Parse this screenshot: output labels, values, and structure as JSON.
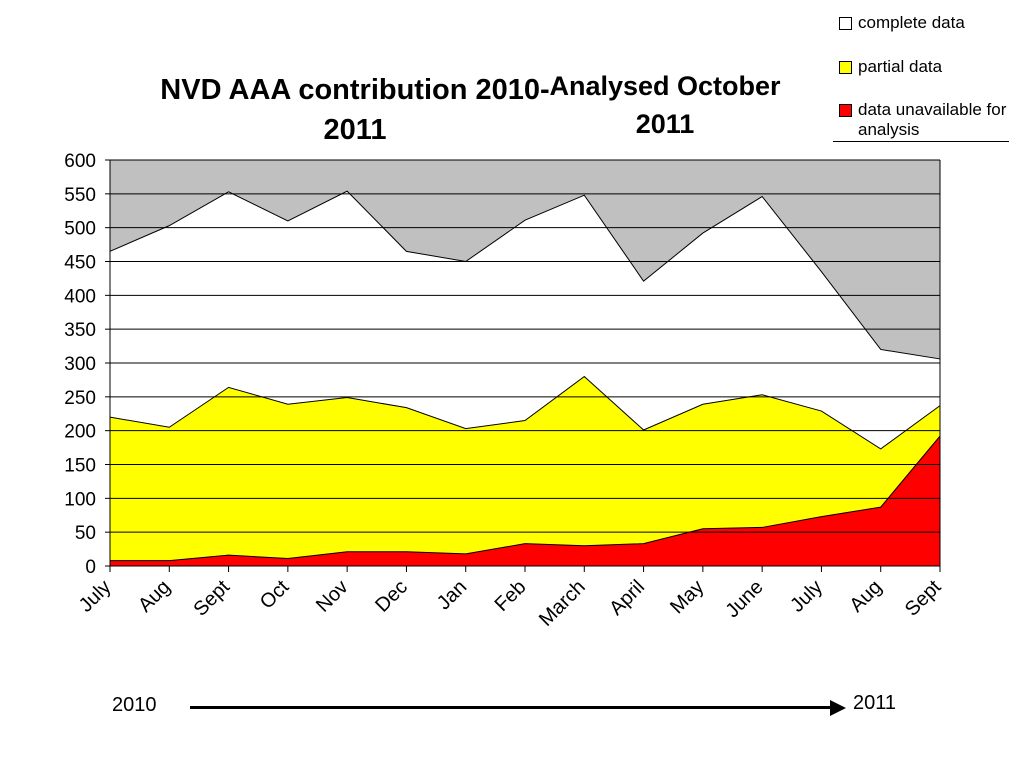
{
  "chart_data": {
    "type": "area",
    "title": "NVD AAA contribution 2010-2011",
    "subtitle": "Analysed October 2011",
    "categories": [
      "July",
      "Aug",
      "Sept",
      "Oct",
      "Nov",
      "Dec",
      "Jan",
      "Feb",
      "March",
      "April",
      "May",
      "June",
      "July",
      "Aug",
      "Sept"
    ],
    "stacked": true,
    "series": [
      {
        "name": "data unavailable for analysis",
        "color": "#ff0000",
        "values": [
          8,
          8,
          16,
          11,
          21,
          21,
          18,
          33,
          30,
          33,
          55,
          57,
          73,
          87,
          192
        ]
      },
      {
        "name": "partial data",
        "color": "#ffff00",
        "values": [
          212,
          197,
          248,
          228,
          228,
          213,
          185,
          182,
          250,
          168,
          184,
          196,
          156,
          86,
          45
        ]
      },
      {
        "name": "complete data",
        "color": "#ffffff",
        "values": [
          245,
          298,
          289,
          271,
          305,
          231,
          247,
          296,
          268,
          220,
          253,
          293,
          206,
          147,
          69
        ]
      }
    ],
    "ylim": [
      0,
      600
    ],
    "yticks": [
      "0",
      "50",
      "100",
      "150",
      "200",
      "250",
      "300",
      "350",
      "400",
      "450",
      "500",
      "550",
      "600"
    ],
    "grid": true,
    "plot_background": "#c0c0c0",
    "legend_position": "top-right",
    "xlabel": "",
    "ylabel": ""
  },
  "legend": [
    {
      "label": "complete data",
      "color": "#ffffff"
    },
    {
      "label": "partial data",
      "color": "#ffff00"
    },
    {
      "label": "data unavailable for analysis",
      "color": "#ff0000"
    }
  ],
  "timeline": {
    "start_label": "2010",
    "end_label": "2011"
  }
}
